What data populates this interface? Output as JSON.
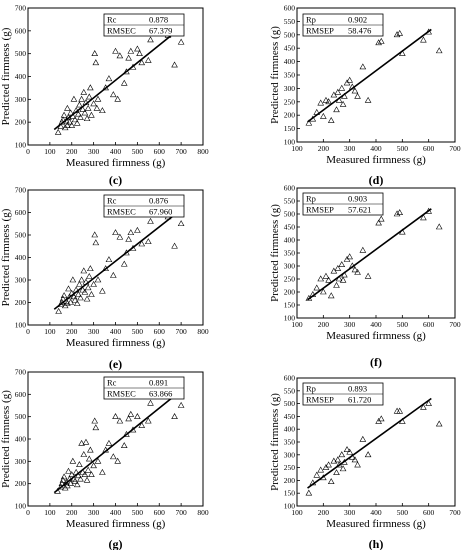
{
  "chart_data": [
    {
      "type": "scatter",
      "panel_label": "(c)",
      "xlabel": "Measured firmness (g)",
      "ylabel": "Predicted firmness (g)",
      "xlim": [
        0,
        800
      ],
      "ylim": [
        100,
        700
      ],
      "xticks": [
        "0",
        "100",
        "200",
        "300",
        "400",
        "500",
        "600",
        "700",
        "800"
      ],
      "yticks": [
        "100",
        "200",
        "300",
        "400",
        "500",
        "600",
        "700"
      ],
      "stats": [
        {
          "label": "Rc",
          "value": "0.878"
        },
        {
          "label": "RMSEC",
          "value": "67.379"
        }
      ],
      "fit_line": {
        "x": [
          120,
          710
        ],
        "y": [
          168,
          622
        ]
      },
      "series": [
        {
          "x": [
            138,
            150,
            155,
            160,
            165,
            170,
            175,
            180,
            180,
            185,
            190,
            195,
            200,
            205,
            210,
            215,
            220,
            225,
            230,
            235,
            240,
            245,
            250,
            255,
            260,
            265,
            270,
            275,
            280,
            285,
            290,
            300,
            305,
            310,
            315,
            320,
            340,
            355,
            370,
            390,
            400,
            410,
            420,
            440,
            450,
            460,
            470,
            480,
            500,
            510,
            520,
            550,
            560,
            580,
            600,
            640,
            670,
            700
          ],
          "y": [
            155,
            180,
            200,
            210,
            230,
            175,
            205,
            185,
            260,
            220,
            200,
            240,
            185,
            225,
            300,
            210,
            250,
            195,
            235,
            275,
            220,
            300,
            255,
            330,
            240,
            285,
            215,
            260,
            310,
            350,
            230,
            280,
            500,
            460,
            260,
            300,
            250,
            350,
            390,
            320,
            510,
            300,
            490,
            370,
            420,
            480,
            510,
            440,
            520,
            500,
            460,
            470,
            560,
            590,
            640,
            580,
            450,
            550
          ]
        }
      ]
    },
    {
      "type": "scatter",
      "panel_label": "(d)",
      "xlabel": "Measured firmness (g)",
      "ylabel": "Predicted firmness (g)",
      "xlim": [
        100,
        700
      ],
      "ylim": [
        100,
        600
      ],
      "xticks": [
        "100",
        "200",
        "300",
        "400",
        "500",
        "600",
        "700"
      ],
      "yticks": [
        "100",
        "150",
        "200",
        "250",
        "300",
        "350",
        "400",
        "450",
        "500",
        "550",
        "600"
      ],
      "stats": [
        {
          "label": "Rp",
          "value": "0.902"
        },
        {
          "label": "RMSEP",
          "value": "58.476"
        }
      ],
      "fit_line": {
        "x": [
          140,
          610
        ],
        "y": [
          175,
          520
        ]
      },
      "series": [
        {
          "x": [
            145,
            160,
            175,
            190,
            200,
            210,
            220,
            230,
            240,
            250,
            255,
            260,
            270,
            275,
            280,
            290,
            300,
            310,
            320,
            330,
            350,
            370,
            410,
            420,
            480,
            490,
            500,
            580,
            600,
            640
          ],
          "y": [
            170,
            185,
            210,
            245,
            195,
            255,
            250,
            180,
            275,
            220,
            285,
            255,
            300,
            240,
            270,
            320,
            330,
            305,
            290,
            270,
            380,
            255,
            470,
            475,
            500,
            505,
            430,
            480,
            510,
            440
          ]
        }
      ]
    },
    {
      "type": "scatter",
      "panel_label": "(e)",
      "xlabel": "Measured firmness (g)",
      "ylabel": "Predicted firmness (g)",
      "xlim": [
        0,
        800
      ],
      "ylim": [
        100,
        700
      ],
      "xticks": [
        "0",
        "100",
        "200",
        "300",
        "400",
        "500",
        "600",
        "700",
        "800"
      ],
      "yticks": [
        "100",
        "200",
        "300",
        "400",
        "500",
        "600",
        "700"
      ],
      "stats": [
        {
          "label": "Rc",
          "value": "0.876"
        },
        {
          "label": "RMSEC",
          "value": "67.960"
        }
      ],
      "fit_line": {
        "x": [
          120,
          710
        ],
        "y": [
          170,
          620
        ]
      },
      "series": [
        {
          "x": [
            140,
            150,
            155,
            160,
            165,
            170,
            175,
            180,
            185,
            190,
            195,
            200,
            205,
            210,
            215,
            220,
            225,
            230,
            235,
            240,
            245,
            250,
            255,
            260,
            265,
            270,
            275,
            280,
            285,
            290,
            300,
            305,
            310,
            320,
            340,
            355,
            370,
            390,
            400,
            420,
            440,
            450,
            460,
            470,
            480,
            500,
            520,
            550,
            560,
            580,
            600,
            640,
            670,
            700
          ],
          "y": [
            160,
            190,
            200,
            215,
            230,
            185,
            205,
            195,
            260,
            225,
            200,
            240,
            300,
            225,
            210,
            255,
            195,
            235,
            280,
            220,
            300,
            255,
            340,
            245,
            290,
            215,
            265,
            315,
            350,
            235,
            280,
            500,
            465,
            300,
            250,
            350,
            390,
            320,
            510,
            490,
            370,
            420,
            480,
            510,
            440,
            520,
            460,
            470,
            560,
            590,
            640,
            580,
            450,
            550
          ]
        }
      ]
    },
    {
      "type": "scatter",
      "panel_label": "(f)",
      "xlabel": "Measured firmness (g)",
      "ylabel": "Predicted firmness (g)",
      "xlim": [
        100,
        700
      ],
      "ylim": [
        100,
        600
      ],
      "xticks": [
        "100",
        "200",
        "300",
        "400",
        "500",
        "600",
        "700"
      ],
      "yticks": [
        "100",
        "150",
        "200",
        "250",
        "300",
        "350",
        "400",
        "450",
        "500",
        "550",
        "600"
      ],
      "stats": [
        {
          "label": "Rp",
          "value": "0.903"
        },
        {
          "label": "RMSEP",
          "value": "57.621"
        }
      ],
      "fit_line": {
        "x": [
          140,
          610
        ],
        "y": [
          170,
          520
        ]
      },
      "series": [
        {
          "x": [
            145,
            160,
            175,
            190,
            200,
            210,
            220,
            230,
            240,
            250,
            255,
            260,
            270,
            275,
            280,
            290,
            300,
            310,
            320,
            330,
            350,
            370,
            410,
            420,
            480,
            490,
            500,
            580,
            600,
            640
          ],
          "y": [
            175,
            190,
            215,
            250,
            200,
            260,
            245,
            185,
            280,
            225,
            290,
            250,
            305,
            245,
            265,
            325,
            335,
            300,
            285,
            275,
            360,
            260,
            465,
            480,
            500,
            505,
            430,
            485,
            510,
            450
          ]
        }
      ]
    },
    {
      "type": "scatter",
      "panel_label": "(g)",
      "xlabel": "Measured firmness (g)",
      "ylabel": "Predicted firmness (g)",
      "xlim": [
        0,
        800
      ],
      "ylim": [
        100,
        700
      ],
      "xticks": [
        "0",
        "100",
        "200",
        "300",
        "400",
        "500",
        "600",
        "700",
        "800"
      ],
      "yticks": [
        "100",
        "200",
        "300",
        "400",
        "500",
        "600",
        "700"
      ],
      "stats": [
        {
          "label": "Rc",
          "value": "0.891"
        },
        {
          "label": "RMSEC",
          "value": "63.866"
        }
      ],
      "fit_line": {
        "x": [
          120,
          710
        ],
        "y": [
          160,
          625
        ]
      },
      "series": [
        {
          "x": [
            135,
            150,
            155,
            160,
            165,
            170,
            175,
            180,
            185,
            190,
            195,
            200,
            205,
            210,
            215,
            220,
            225,
            230,
            235,
            240,
            245,
            250,
            255,
            260,
            265,
            270,
            275,
            280,
            285,
            290,
            300,
            305,
            310,
            320,
            340,
            355,
            370,
            390,
            400,
            410,
            420,
            440,
            450,
            460,
            470,
            480,
            500,
            520,
            550,
            560,
            580,
            600,
            640,
            670,
            700
          ],
          "y": [
            165,
            185,
            200,
            215,
            230,
            180,
            205,
            190,
            255,
            220,
            200,
            240,
            300,
            220,
            210,
            250,
            195,
            235,
            285,
            220,
            380,
            250,
            330,
            240,
            385,
            215,
            260,
            310,
            350,
            240,
            280,
            480,
            450,
            300,
            250,
            350,
            380,
            320,
            500,
            300,
            480,
            370,
            420,
            490,
            510,
            440,
            500,
            460,
            480,
            560,
            590,
            660,
            600,
            500,
            550
          ]
        }
      ]
    },
    {
      "type": "scatter",
      "panel_label": "(h)",
      "xlabel": "Measured firmness (g)",
      "ylabel": "Predicted firmness (g)",
      "xlim": [
        100,
        700
      ],
      "ylim": [
        100,
        600
      ],
      "xticks": [
        "100",
        "200",
        "300",
        "400",
        "500",
        "600",
        "700"
      ],
      "yticks": [
        "100",
        "150",
        "200",
        "250",
        "300",
        "350",
        "400",
        "450",
        "500",
        "550",
        "600"
      ],
      "stats": [
        {
          "label": "Rp",
          "value": "0.893"
        },
        {
          "label": "RMSEP",
          "value": "61.720"
        }
      ],
      "fit_line": {
        "x": [
          140,
          610
        ],
        "y": [
          170,
          520
        ]
      },
      "series": [
        {
          "x": [
            145,
            160,
            175,
            190,
            200,
            210,
            220,
            230,
            240,
            250,
            255,
            260,
            270,
            275,
            280,
            290,
            300,
            310,
            320,
            330,
            350,
            370,
            410,
            420,
            480,
            490,
            500,
            580,
            600,
            640
          ],
          "y": [
            150,
            190,
            220,
            240,
            210,
            250,
            260,
            195,
            275,
            230,
            280,
            260,
            300,
            245,
            270,
            320,
            310,
            290,
            280,
            260,
            360,
            300,
            430,
            440,
            470,
            470,
            430,
            485,
            500,
            420
          ]
        }
      ]
    }
  ]
}
